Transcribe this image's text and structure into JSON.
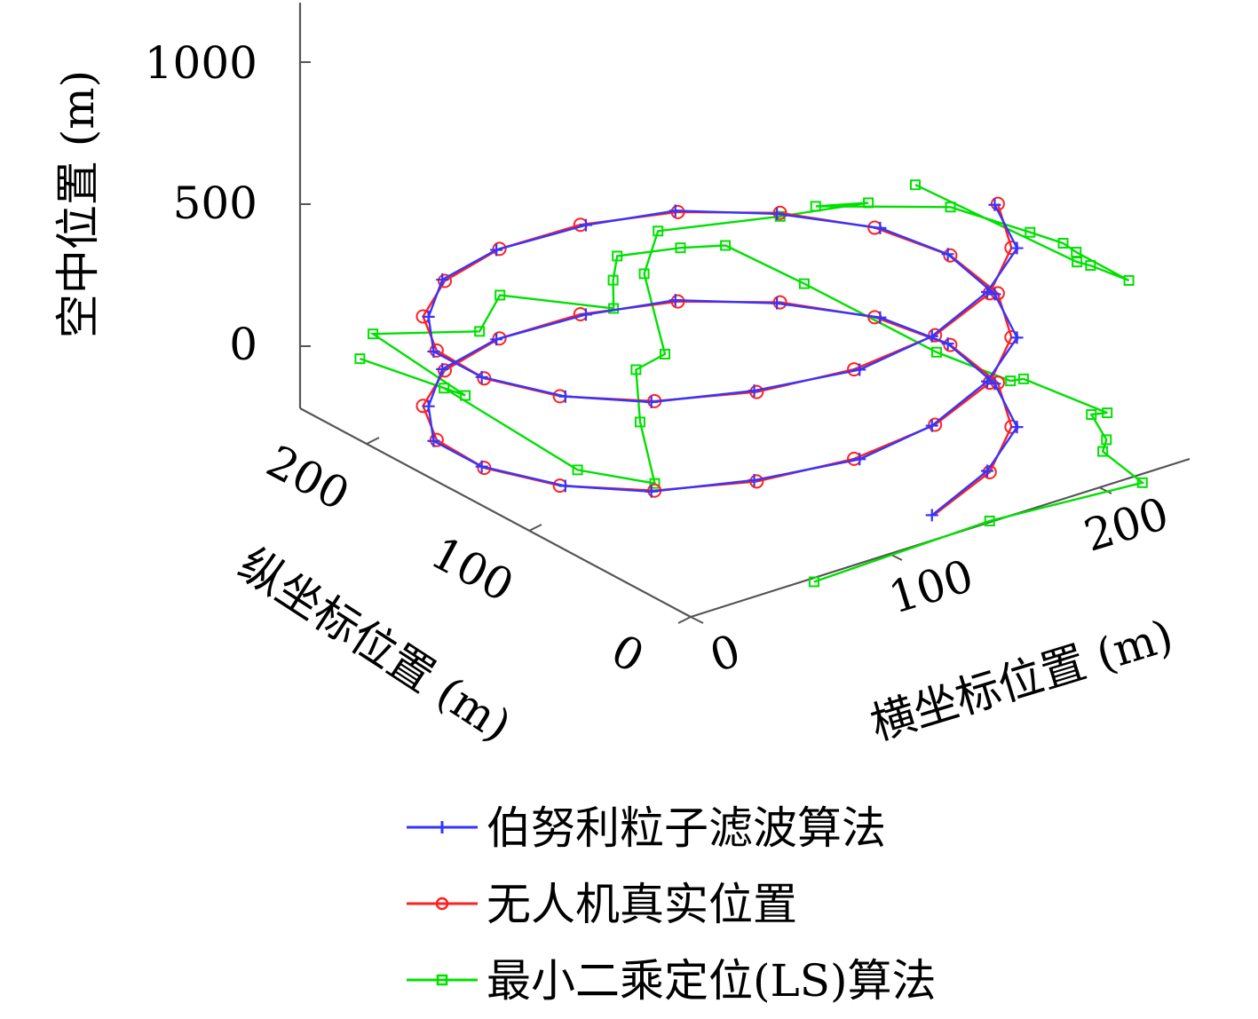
{
  "chart_data": {
    "type": "line3d",
    "zlabel": "空中位置 (m)",
    "ylabel": "纵坐标位置 (m)",
    "xlabel": "横坐标位置 (m)",
    "z_ticks": [
      "1000",
      "500",
      "0"
    ],
    "y_ticks": [
      "200",
      "100",
      "0"
    ],
    "x_ticks": [
      "0",
      "100",
      "200"
    ],
    "xlim": [
      0,
      230
    ],
    "ylim": [
      0,
      230
    ],
    "zlim": [
      -200,
      1200
    ],
    "grid": false,
    "legend_position": "bottom",
    "colors": {
      "bernoulli": "#3535ff",
      "true": "#ff2020",
      "ls": "#00e000"
    },
    "legend": [
      {
        "key": "bernoulli",
        "label": "伯努利粒子滤波算法",
        "marker": "plus"
      },
      {
        "key": "true",
        "label": "无人机真实位置",
        "marker": "circle"
      },
      {
        "key": "ls",
        "label": "最小二乘定位(LS)算法",
        "marker": "square"
      }
    ],
    "helix": {
      "center_x": 105,
      "center_y": 115,
      "radius_x": 120,
      "radius_y": 100,
      "z_start": 0,
      "z_step": 17.5,
      "start_angle_deg": -76,
      "angle_step_deg": 20,
      "points": 40
    },
    "ls_series": {
      "x": [
        58,
        144,
        210,
        213,
        218,
        225,
        228,
        219,
        211,
        202,
        198,
        193,
        175,
        148,
        130,
        111,
        81,
        51,
        14,
        4,
        -10,
        -4,
        -13,
        0,
        28,
        54,
        69,
        106,
        132,
        175,
        207,
        186,
        224,
        231,
        232,
        228,
        225,
        219,
        214,
        206
      ],
      "y": [
        -3,
        -3,
        -14,
        14,
        18,
        36,
        30,
        70,
        68,
        102,
        178,
        220,
        225,
        230,
        210,
        186,
        218,
        193,
        212,
        143,
        190,
        146,
        53,
        22,
        66,
        101,
        102,
        161,
        185,
        164,
        150,
        156,
        121,
        81,
        62,
        49,
        13,
        29,
        31,
        120
      ],
      "z": [
        0,
        17.5,
        35,
        52.5,
        70,
        87.5,
        105,
        122.5,
        140,
        157.5,
        175,
        192.5,
        210,
        227.5,
        245,
        262.5,
        280,
        297.5,
        315,
        332.5,
        350,
        367.5,
        385,
        402.5,
        420,
        437.5,
        455,
        472.5,
        490,
        507.5,
        525,
        542.5,
        560,
        577.5,
        595,
        612.5,
        630,
        647.5,
        665,
        682.5
      ]
    }
  }
}
